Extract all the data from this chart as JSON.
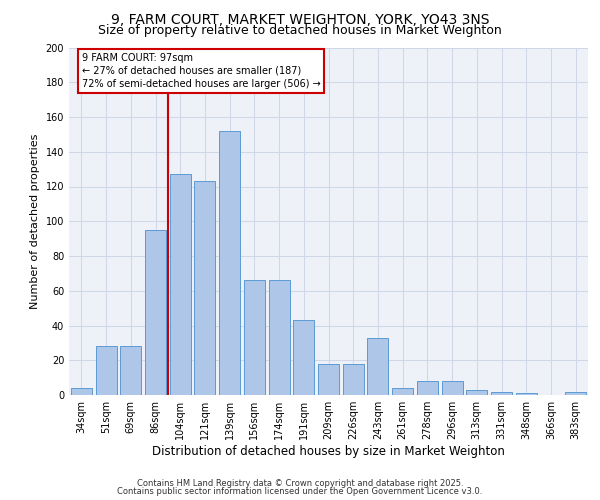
{
  "title1": "9, FARM COURT, MARKET WEIGHTON, YORK, YO43 3NS",
  "title2": "Size of property relative to detached houses in Market Weighton",
  "xlabel": "Distribution of detached houses by size in Market Weighton",
  "ylabel": "Number of detached properties",
  "categories": [
    "34sqm",
    "51sqm",
    "69sqm",
    "86sqm",
    "104sqm",
    "121sqm",
    "139sqm",
    "156sqm",
    "174sqm",
    "191sqm",
    "209sqm",
    "226sqm",
    "243sqm",
    "261sqm",
    "278sqm",
    "296sqm",
    "313sqm",
    "331sqm",
    "348sqm",
    "366sqm",
    "383sqm"
  ],
  "values": [
    4,
    28,
    28,
    95,
    127,
    123,
    152,
    66,
    66,
    43,
    18,
    18,
    33,
    4,
    8,
    8,
    3,
    2,
    1,
    0,
    2
  ],
  "bar_color": "#aec6e8",
  "bar_edge_color": "#5b9bd5",
  "grid_color": "#d0d8e8",
  "background_color": "#eef2f8",
  "red_line_color": "#cc0000",
  "annotation_line1": "9 FARM COURT: 97sqm",
  "annotation_line2": "← 27% of detached houses are smaller (187)",
  "annotation_line3": "72% of semi-detached houses are larger (506) →",
  "annotation_box_color": "#cc0000",
  "ylim": [
    0,
    200
  ],
  "yticks": [
    0,
    20,
    40,
    60,
    80,
    100,
    120,
    140,
    160,
    180,
    200
  ],
  "footer_line1": "Contains HM Land Registry data © Crown copyright and database right 2025.",
  "footer_line2": "Contains public sector information licensed under the Open Government Licence v3.0.",
  "title_fontsize": 10,
  "subtitle_fontsize": 9,
  "tick_fontsize": 7,
  "ylabel_fontsize": 8,
  "xlabel_fontsize": 8.5,
  "annotation_fontsize": 7,
  "footer_fontsize": 6
}
